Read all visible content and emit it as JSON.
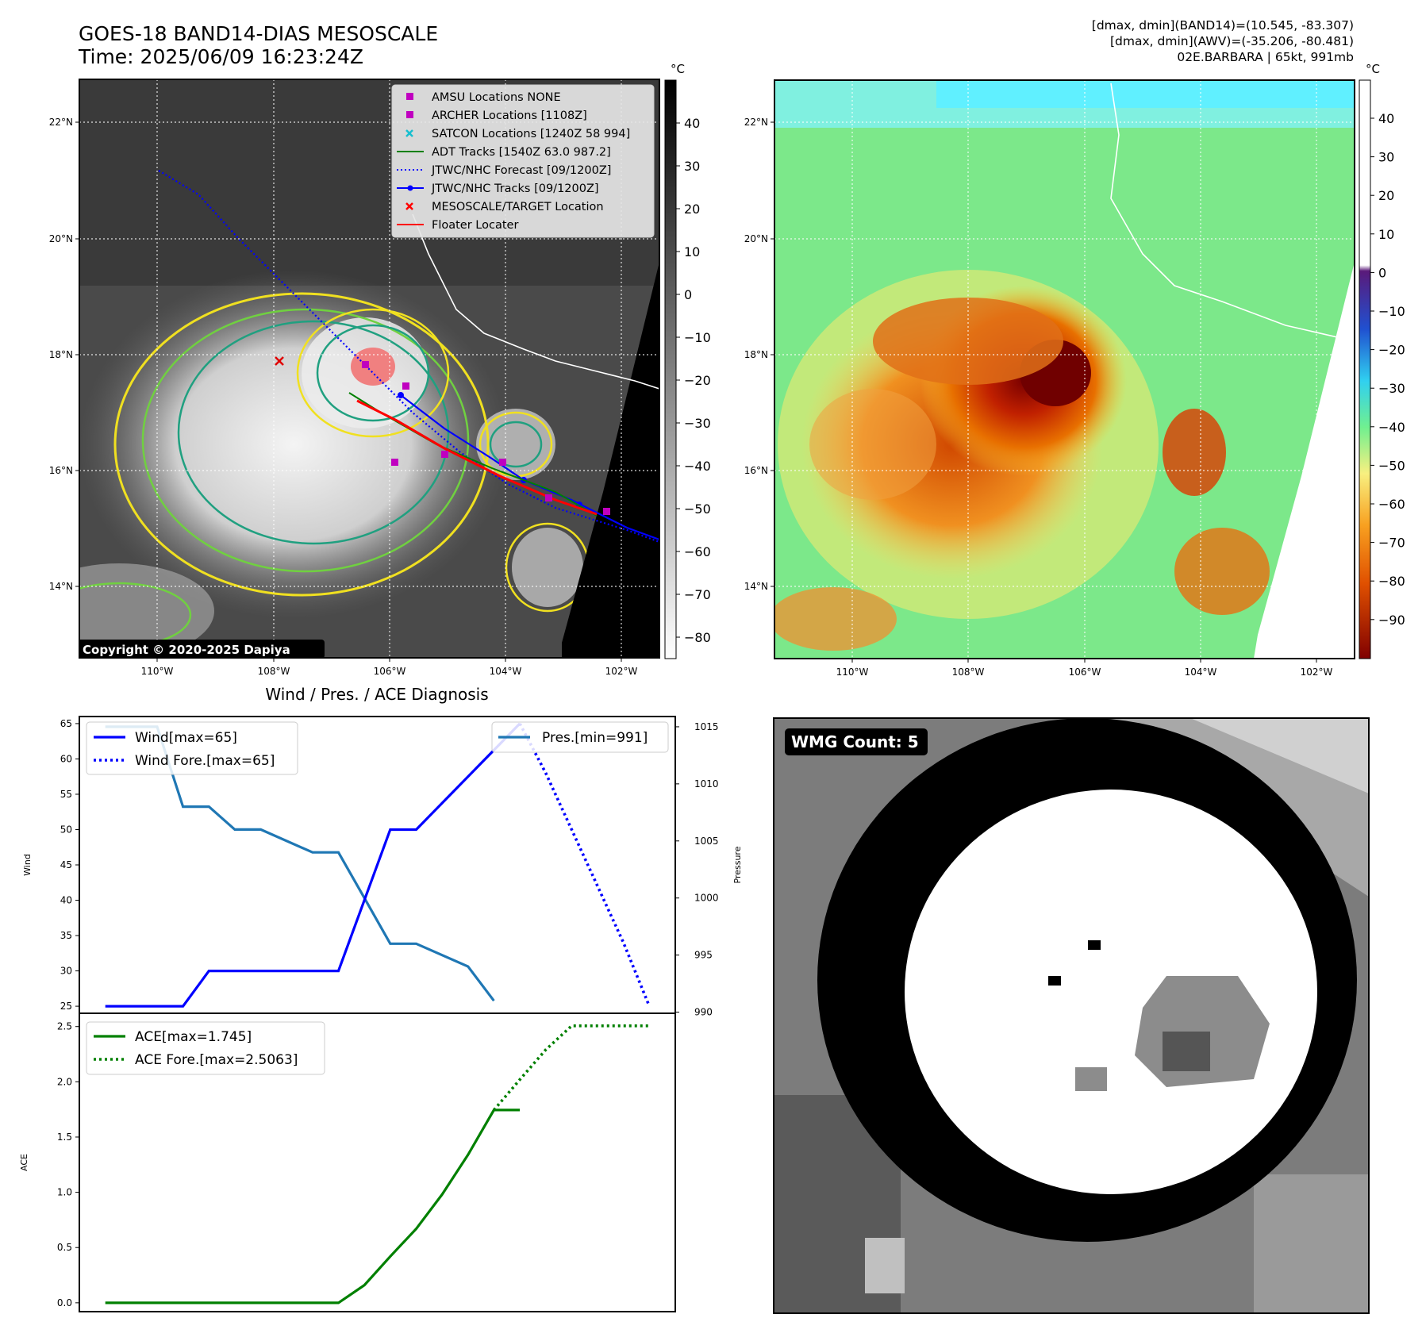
{
  "header": {
    "title_line1": "GOES-18 BAND14-DIAS MESOSCALE",
    "title_line2": "Time: 2025/06/09 16:23:24Z",
    "info_line1": "[dmax, dmin](BAND14)=(10.545, -83.307)",
    "info_line2": "[dmax, dmin](AWV)=(-35.206, -80.481)",
    "info_line3": "02E.BARBARA | 65kt, 991mb"
  },
  "map": {
    "lon_labels": [
      "110°W",
      "108°W",
      "106°W",
      "104°W",
      "102°W"
    ],
    "lat_labels": [
      "22°N",
      "20°N",
      "18°N",
      "16°N",
      "14°N"
    ],
    "colorbar_unit": "°C",
    "ir_colorbar_ticks": [
      "40",
      "30",
      "20",
      "10",
      "0",
      "−10",
      "−20",
      "−30",
      "−40",
      "−50",
      "−60",
      "−70",
      "−80"
    ],
    "awv_colorbar_ticks": [
      "40",
      "30",
      "20",
      "10",
      "0",
      "−10",
      "−20",
      "−30",
      "−40",
      "−50",
      "−60",
      "−70",
      "−80",
      "−90"
    ],
    "copyright": "Copyright © 2020-2025 Dapiya",
    "legend": [
      {
        "label": "AMSU Locations NONE",
        "color": "#c000c0",
        "marker": "square"
      },
      {
        "label": "ARCHER Locations [1108Z]",
        "color": "#c000c0",
        "marker": "square"
      },
      {
        "label": "SATCON Locations [1240Z 58 994]",
        "color": "#17becf",
        "marker": "x"
      },
      {
        "label": "ADT Tracks [1540Z 63.0 987.2]",
        "color": "#008000",
        "marker": "line"
      },
      {
        "label": "JTWC/NHC Forecast [09/1200Z]",
        "color": "#0000ff",
        "marker": "dotted"
      },
      {
        "label": "JTWC/NHC Tracks [09/1200Z]",
        "color": "#0000ff",
        "marker": "line-dot"
      },
      {
        "label": "MESOSCALE/TARGET Location",
        "color": "#ff0000",
        "marker": "x"
      },
      {
        "label": "Floater Locater",
        "color": "#ff0000",
        "marker": "line"
      }
    ]
  },
  "diag": {
    "title": "Wind / Pres. / ACE Diagnosis",
    "wind_ylabel": "Wind",
    "pres_ylabel": "Pressure",
    "ace_ylabel": "ACE",
    "legend_wind": "Wind[max=65]",
    "legend_wind_fore": "Wind Fore.[max=65]",
    "legend_pres": "Pres.[min=991]",
    "legend_ace": "ACE[max=1.745]",
    "legend_ace_fore": "ACE Fore.[max=2.5063]"
  },
  "wmg": {
    "label": "WMG Count: 5"
  },
  "chart_data": [
    {
      "type": "line",
      "title": "Wind / Pres. / ACE Diagnosis",
      "ylabel": "Wind",
      "ylim": [
        24,
        66
      ],
      "yticks": [
        25,
        30,
        35,
        40,
        45,
        50,
        55,
        60,
        65
      ],
      "xlim": [
        -1,
        22
      ],
      "series": [
        {
          "name": "Wind[max=65]",
          "color": "#0000ff",
          "style": "solid",
          "x": [
            0,
            3,
            4,
            9,
            11,
            12,
            16
          ],
          "y": [
            25,
            25,
            30,
            30,
            50,
            50,
            65
          ]
        },
        {
          "name": "Wind Fore.[max=65]",
          "color": "#0000ff",
          "style": "dotted",
          "x": [
            16,
            17,
            18,
            19,
            20,
            21
          ],
          "y": [
            65,
            58,
            50,
            42,
            34,
            25
          ]
        }
      ]
    },
    {
      "type": "line",
      "ylabel": "Pressure",
      "ylim": [
        989.9,
        1015.9
      ],
      "yticks": [
        990,
        995,
        1000,
        1005,
        1010,
        1015
      ],
      "xlim": [
        -1,
        22
      ],
      "series": [
        {
          "name": "Pres.[min=991]",
          "color": "#1f77b4",
          "style": "solid",
          "x": [
            0,
            2,
            3,
            4,
            5,
            6,
            8,
            9,
            10,
            11,
            12,
            14,
            15
          ],
          "y": [
            1015,
            1015,
            1008,
            1008,
            1006,
            1006,
            1004,
            1004,
            1000,
            996,
            996,
            994,
            991
          ]
        }
      ]
    },
    {
      "type": "line",
      "ylabel": "ACE",
      "ylim": [
        -0.08,
        2.62
      ],
      "yticks": [
        0.0,
        0.5,
        1.0,
        1.5,
        2.0,
        2.5
      ],
      "xlim": [
        -1,
        22
      ],
      "series": [
        {
          "name": "ACE[max=1.745]",
          "color": "#008000",
          "style": "solid",
          "x": [
            0,
            9,
            10,
            11,
            12,
            13,
            14,
            15,
            16
          ],
          "y": [
            0,
            0,
            0.16,
            0.42,
            0.67,
            0.98,
            1.34,
            1.745,
            1.745
          ]
        },
        {
          "name": "ACE Fore.[max=2.5063]",
          "color": "#008000",
          "style": "dotted",
          "x": [
            15,
            16,
            17,
            18,
            19,
            20,
            21
          ],
          "y": [
            1.745,
            2.02,
            2.29,
            2.5063,
            2.5063,
            2.5063,
            2.5063
          ]
        }
      ]
    }
  ]
}
